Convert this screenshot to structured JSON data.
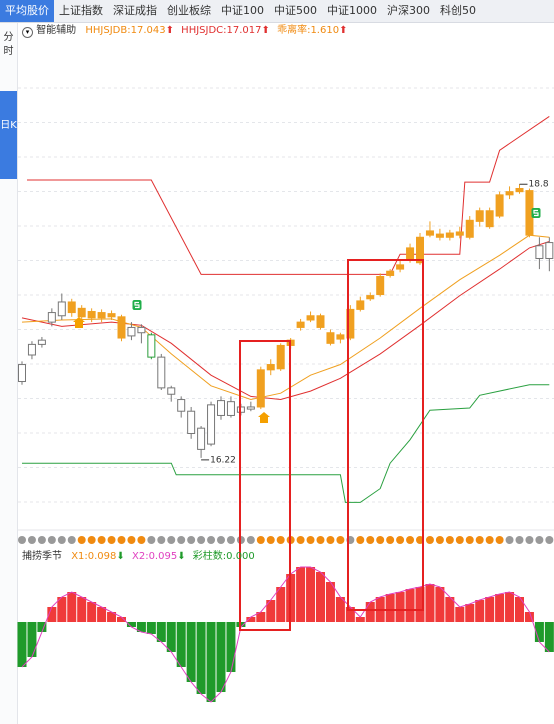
{
  "tabs": [
    "平均股价",
    "上证指数",
    "深证成指",
    "创业板综",
    "中证100",
    "中证500",
    "中证1000",
    "沪深300",
    "科创50"
  ],
  "side_tabs": [
    "分时",
    "日K"
  ],
  "indicators": {
    "name": "智能辅助",
    "items": [
      "HHJSJDB:17.043",
      "HHJSJDC:17.017",
      "乖离率:1.610"
    ]
  },
  "chart_data": {
    "type": "candlestick",
    "ylim": [
      15.54,
      20.16
    ],
    "candles": {
      "open": [
        16.94,
        17.19,
        17.29,
        17.5,
        17.56,
        17.69,
        17.63,
        17.6,
        17.59,
        17.58,
        17.55,
        17.37,
        17.4,
        17.38,
        17.17,
        16.88,
        16.77,
        16.66,
        16.5,
        16.35,
        16.76,
        16.62,
        16.65,
        16.68,
        16.7,
        17.05,
        17.06,
        17.28,
        17.45,
        17.52,
        17.56,
        17.4,
        17.38,
        17.35,
        17.62,
        17.72,
        17.76,
        17.94,
        18.0,
        18.1,
        18.06,
        18.32,
        18.33,
        18.3,
        18.35,
        18.3,
        18.45,
        18.55,
        18.5,
        18.7,
        18.73,
        18.74,
        18.22,
        18.1
      ],
      "close": [
        17.1,
        17.29,
        17.33,
        17.59,
        17.69,
        17.59,
        17.55,
        17.54,
        17.54,
        17.55,
        17.35,
        17.45,
        17.45,
        17.17,
        16.88,
        16.82,
        16.66,
        16.45,
        16.3,
        16.72,
        16.62,
        16.75,
        16.7,
        16.7,
        17.05,
        17.1,
        17.28,
        17.33,
        17.5,
        17.56,
        17.45,
        17.3,
        17.34,
        17.62,
        17.7,
        17.75,
        17.93,
        17.98,
        18.04,
        18.2,
        18.3,
        18.36,
        18.3,
        18.34,
        18.32,
        18.46,
        18.55,
        18.4,
        18.7,
        18.73,
        18.76,
        18.32,
        18.1,
        18.25
      ],
      "high": [
        17.13,
        17.32,
        17.36,
        17.63,
        17.77,
        17.72,
        17.66,
        17.63,
        17.62,
        17.61,
        17.57,
        17.5,
        17.48,
        17.4,
        17.2,
        16.9,
        16.8,
        16.7,
        16.52,
        16.75,
        16.8,
        16.8,
        16.73,
        16.75,
        17.08,
        17.15,
        17.3,
        17.35,
        17.53,
        17.6,
        17.58,
        17.43,
        17.4,
        17.66,
        17.74,
        17.78,
        17.96,
        18.0,
        18.08,
        18.24,
        18.34,
        18.45,
        18.38,
        18.37,
        18.4,
        18.5,
        18.58,
        18.58,
        18.73,
        18.78,
        18.8,
        18.76,
        18.3,
        18.3
      ],
      "low": [
        16.91,
        17.15,
        17.26,
        17.46,
        17.52,
        17.55,
        17.5,
        17.5,
        17.5,
        17.52,
        17.32,
        17.33,
        17.3,
        17.15,
        16.86,
        16.75,
        16.6,
        16.4,
        16.22,
        16.33,
        16.58,
        16.6,
        16.62,
        16.66,
        16.68,
        17.0,
        17.04,
        17.25,
        17.42,
        17.5,
        17.43,
        17.28,
        17.3,
        17.33,
        17.6,
        17.7,
        17.74,
        17.92,
        17.97,
        18.06,
        18.04,
        18.3,
        18.27,
        18.27,
        18.29,
        18.28,
        18.4,
        18.38,
        18.48,
        18.66,
        18.71,
        18.3,
        18.0,
        17.98
      ],
      "colors": [
        "#777777",
        "#777777",
        "#777777",
        "#777777",
        "#777777",
        "#f0a020",
        "#f0a020",
        "#f0a020",
        "#f0a020",
        "#f0a020",
        "#f0a020",
        "#777777",
        "#777777",
        "#2a9d3a",
        "#777777",
        "#777777",
        "#777777",
        "#777777",
        "#777777",
        "#777777",
        "#777777",
        "#777777",
        "#777777",
        "#777777",
        "#f0a020",
        "#f0a020",
        "#f0a020",
        "#f0a020",
        "#f0a020",
        "#f0a020",
        "#f0a020",
        "#f0a020",
        "#f0a020",
        "#f0a020",
        "#f0a020",
        "#f0a020",
        "#f0a020",
        "#f0a020",
        "#f0a020",
        "#f0a020",
        "#f0a020",
        "#f0a020",
        "#f0a020",
        "#f0a020",
        "#f0a020",
        "#f0a020",
        "#f0a020",
        "#f0a020",
        "#f0a020",
        "#f0a020",
        "#f0a020",
        "#f0a020",
        "#777777",
        "#777777"
      ]
    },
    "lines": [
      {
        "color": "#e03030",
        "x": [
          1.5,
          14,
          19,
          38,
          39,
          45,
          45.5,
          48,
          49,
          54
        ],
        "values": [
          18.84,
          18.84,
          17.95,
          17.95,
          18.14,
          18.14,
          18.82,
          18.82,
          19.12,
          19.44
        ]
      },
      {
        "color": "#2aa040",
        "x": [
          1,
          16,
          16.5,
          33,
          33.5,
          35,
          37,
          38,
          40,
          42,
          46,
          47,
          52,
          54
        ],
        "values": [
          16.17,
          16.17,
          16.06,
          16.06,
          15.8,
          15.8,
          15.93,
          16.17,
          16.39,
          16.67,
          16.69,
          16.81,
          16.91,
          16.91
        ]
      },
      {
        "color": "#e03030",
        "x": [
          1,
          5,
          10,
          13,
          16,
          20,
          24,
          27,
          30,
          33,
          37,
          41,
          45,
          49,
          52,
          54
        ],
        "values": [
          17.54,
          17.46,
          17.5,
          17.47,
          17.3,
          17.0,
          16.8,
          16.77,
          16.85,
          16.97,
          17.2,
          17.47,
          17.75,
          18.0,
          18.2,
          18.26
        ]
      },
      {
        "color": "#f0a020",
        "x": [
          1,
          5,
          10,
          13,
          16,
          20,
          24,
          27,
          30,
          33,
          37,
          41,
          45,
          49,
          52,
          54
        ],
        "values": [
          17.5,
          17.52,
          17.53,
          17.45,
          17.2,
          16.9,
          16.77,
          16.83,
          17.0,
          17.1,
          17.35,
          17.63,
          17.9,
          18.13,
          18.32,
          18.3
        ]
      }
    ],
    "annotations": [
      {
        "text": "18.8",
        "x": 51,
        "value": 18.8
      },
      {
        "text": "16.22",
        "x": 19,
        "value": 16.22
      }
    ],
    "dots": [
      "#999999",
      "#999999",
      "#999999",
      "#999999",
      "#999999",
      "#999999",
      "#f08a10",
      "#f08a10",
      "#f08a10",
      "#f08a10",
      "#f08a10",
      "#f08a10",
      "#f08a10",
      "#999999",
      "#999999",
      "#999999",
      "#999999",
      "#999999",
      "#999999",
      "#999999",
      "#999999",
      "#999999",
      "#999999",
      "#999999",
      "#f08a10",
      "#f08a10",
      "#f08a10",
      "#f08a10",
      "#f08a10",
      "#f08a10",
      "#f08a10",
      "#f08a10",
      "#f08a10",
      "#999999",
      "#f08a10",
      "#f08a10",
      "#f08a10",
      "#f08a10",
      "#f08a10",
      "#f08a10",
      "#f08a10",
      "#f08a10",
      "#f08a10",
      "#f08a10",
      "#f08a10",
      "#f08a10",
      "#f08a10",
      "#f08a10",
      "#f08a10",
      "#999999",
      "#999999",
      "#999999",
      "#999999",
      "#999999"
    ],
    "sub": {
      "name": "捕捞季节",
      "items": [
        "X1:0.098",
        "X2:0.095",
        "彩柱数:0.000"
      ],
      "ylim": [
        -0.2,
        0.2
      ],
      "values": [
        -0.09,
        -0.07,
        -0.02,
        0.03,
        0.05,
        0.06,
        0.05,
        0.04,
        0.03,
        0.02,
        0.01,
        -0.01,
        -0.02,
        -0.024,
        -0.04,
        -0.06,
        -0.09,
        -0.12,
        -0.144,
        -0.16,
        -0.14,
        -0.1,
        -0.01,
        0.01,
        0.02,
        0.044,
        0.07,
        0.096,
        0.11,
        0.11,
        0.1,
        0.08,
        0.05,
        0.03,
        0.01,
        0.04,
        0.05,
        0.056,
        0.06,
        0.066,
        0.07,
        0.076,
        0.07,
        0.05,
        0.03,
        0.036,
        0.044,
        0.05,
        0.056,
        0.06,
        0.05,
        0.02,
        -0.04,
        -0.06
      ],
      "up_color": "#f03a3a",
      "down_color": "#1f9a2a",
      "line_color": "#e040c0"
    }
  }
}
